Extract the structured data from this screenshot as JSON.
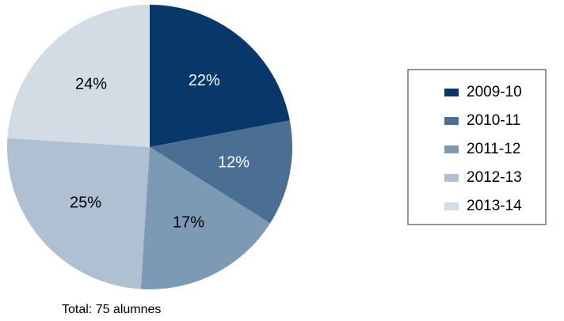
{
  "chart_data": {
    "type": "pie",
    "categories": [
      "2009-10",
      "2010-11",
      "2011-12",
      "2012-13",
      "2013-14"
    ],
    "values": [
      22,
      12,
      17,
      25,
      24
    ],
    "labels": [
      "22%",
      "12%",
      "17%",
      "25%",
      "24%"
    ],
    "colors": [
      "#08386a",
      "#4b6f93",
      "#7d9ab5",
      "#afc0d3",
      "#d3dbe5"
    ],
    "label_colors": [
      "#ffffff",
      "#ffffff",
      "#000000",
      "#000000",
      "#000000"
    ],
    "legend_position": "right"
  },
  "footer": {
    "total_text": "Total: 75 alumnes"
  }
}
